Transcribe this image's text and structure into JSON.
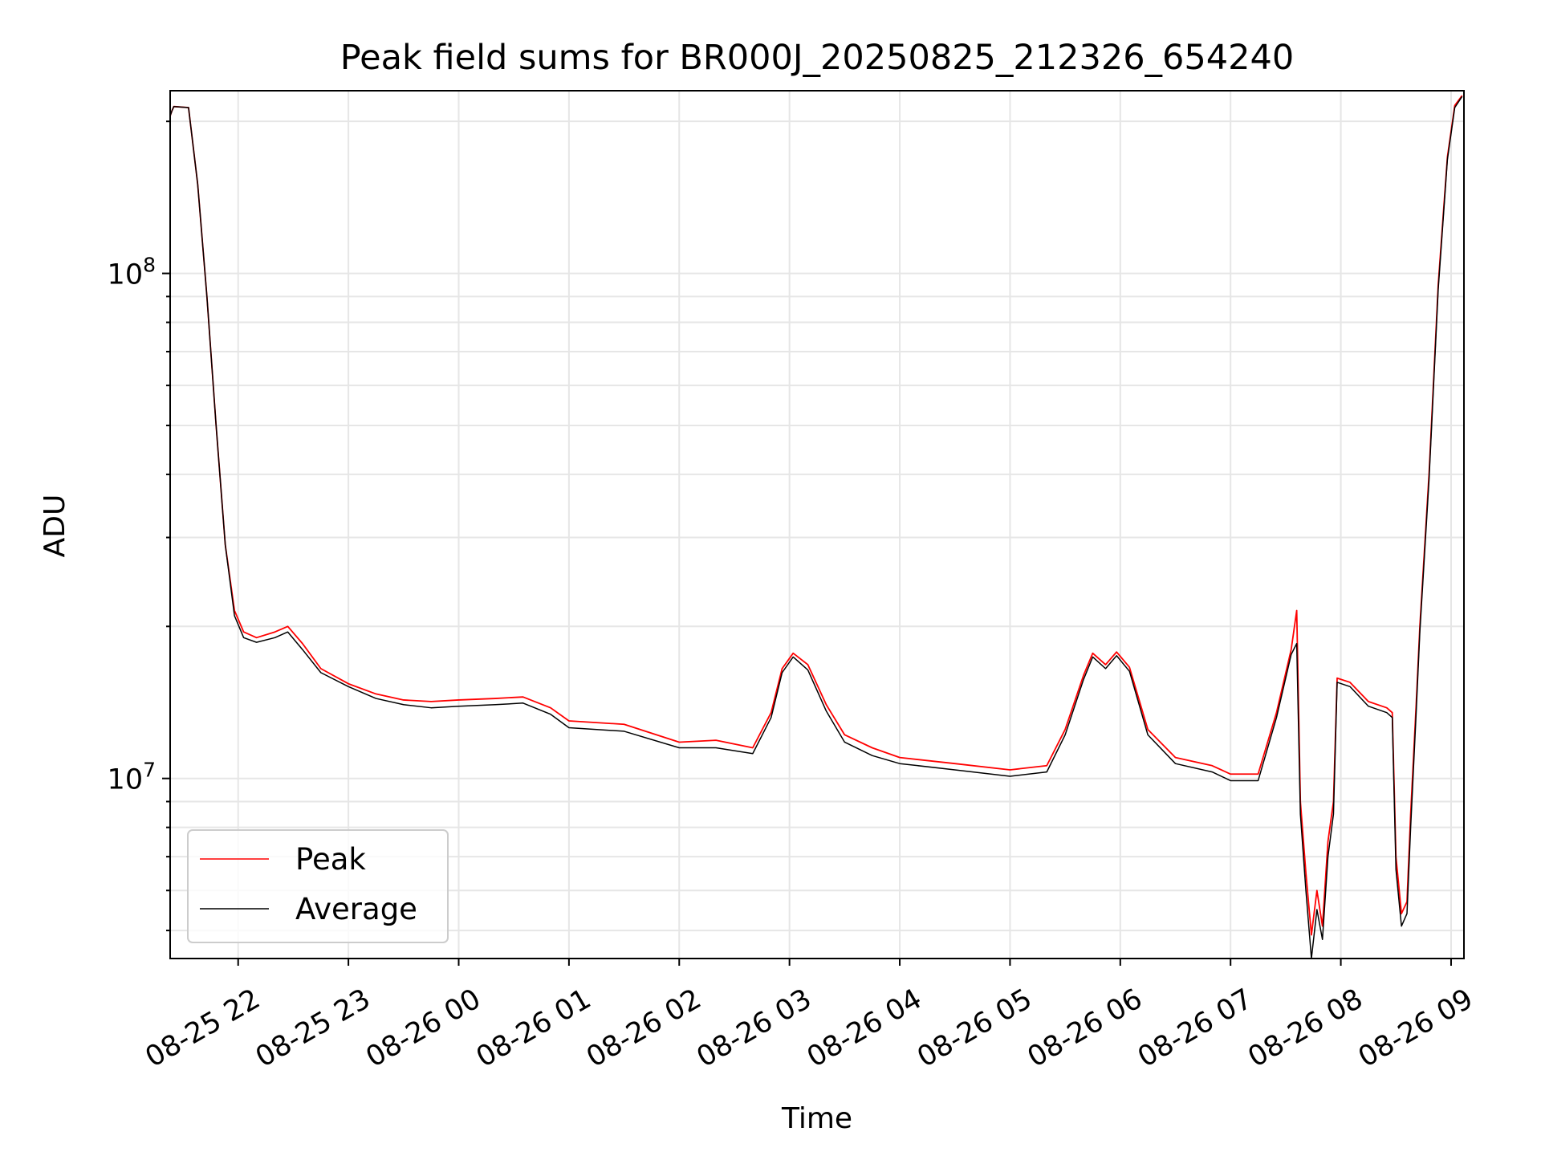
{
  "chart_data": {
    "type": "line",
    "title": "Peak field sums for BR000J_20250825_212326_654240",
    "xlabel": "Time",
    "ylabel": "ADU",
    "yscale": "log",
    "ylim": [
      4400000,
      230000000
    ],
    "xlim": [
      "2025-08-25 21:23",
      "2025-08-26 09:07"
    ],
    "grid": true,
    "legend_position": "lower-left",
    "x_ticks": [
      {
        "t": "2025-08-25 22:00",
        "label": "08-25 22"
      },
      {
        "t": "2025-08-25 23:00",
        "label": "08-25 23"
      },
      {
        "t": "2025-08-26 00:00",
        "label": "08-26 00"
      },
      {
        "t": "2025-08-26 01:00",
        "label": "08-26 01"
      },
      {
        "t": "2025-08-26 02:00",
        "label": "08-26 02"
      },
      {
        "t": "2025-08-26 03:00",
        "label": "08-26 03"
      },
      {
        "t": "2025-08-26 04:00",
        "label": "08-26 04"
      },
      {
        "t": "2025-08-26 05:00",
        "label": "08-26 05"
      },
      {
        "t": "2025-08-26 06:00",
        "label": "08-26 06"
      },
      {
        "t": "2025-08-26 07:00",
        "label": "08-26 07"
      },
      {
        "t": "2025-08-26 08:00",
        "label": "08-26 08"
      },
      {
        "t": "2025-08-26 09:00",
        "label": "08-26 09"
      }
    ],
    "y_ticks": [
      {
        "value": 10000000,
        "base": "10",
        "exp": "7"
      },
      {
        "value": 100000000,
        "base": "10",
        "exp": "8"
      }
    ],
    "series": [
      {
        "name": "Peak",
        "color": "#ff0000",
        "points": [
          [
            "2025-08-25 21:23",
            205000000
          ],
          [
            "2025-08-25 21:24",
            210000000
          ],
          [
            "2025-08-25 21:25",
            214000000
          ],
          [
            "2025-08-25 21:33",
            213000000
          ],
          [
            "2025-08-25 21:38",
            150000000
          ],
          [
            "2025-08-25 21:43",
            90000000
          ],
          [
            "2025-08-25 21:48",
            50000000
          ],
          [
            "2025-08-25 21:53",
            29000000
          ],
          [
            "2025-08-25 21:58",
            21500000
          ],
          [
            "2025-08-25 22:03",
            19500000
          ],
          [
            "2025-08-25 22:10",
            19000000
          ],
          [
            "2025-08-25 22:20",
            19500000
          ],
          [
            "2025-08-25 22:27",
            20000000
          ],
          [
            "2025-08-25 22:35",
            18500000
          ],
          [
            "2025-08-25 22:45",
            16500000
          ],
          [
            "2025-08-25 23:00",
            15400000
          ],
          [
            "2025-08-25 23:15",
            14700000
          ],
          [
            "2025-08-25 23:30",
            14300000
          ],
          [
            "2025-08-25 23:45",
            14200000
          ],
          [
            "2025-08-26 00:00",
            14300000
          ],
          [
            "2025-08-26 00:20",
            14400000
          ],
          [
            "2025-08-26 00:35",
            14500000
          ],
          [
            "2025-08-26 00:50",
            13800000
          ],
          [
            "2025-08-26 01:00",
            13000000
          ],
          [
            "2025-08-26 01:30",
            12800000
          ],
          [
            "2025-08-26 02:00",
            11800000
          ],
          [
            "2025-08-26 02:20",
            11900000
          ],
          [
            "2025-08-26 02:40",
            11500000
          ],
          [
            "2025-08-26 02:50",
            13500000
          ],
          [
            "2025-08-26 02:56",
            16500000
          ],
          [
            "2025-08-26 03:02",
            17700000
          ],
          [
            "2025-08-26 03:10",
            16800000
          ],
          [
            "2025-08-26 03:20",
            14000000
          ],
          [
            "2025-08-26 03:30",
            12200000
          ],
          [
            "2025-08-26 03:45",
            11500000
          ],
          [
            "2025-08-26 04:00",
            11000000
          ],
          [
            "2025-08-26 04:30",
            10700000
          ],
          [
            "2025-08-26 05:00",
            10400000
          ],
          [
            "2025-08-26 05:20",
            10600000
          ],
          [
            "2025-08-26 05:30",
            12500000
          ],
          [
            "2025-08-26 05:40",
            16000000
          ],
          [
            "2025-08-26 05:45",
            17700000
          ],
          [
            "2025-08-26 05:52",
            16800000
          ],
          [
            "2025-08-26 05:58",
            17800000
          ],
          [
            "2025-08-26 06:05",
            16600000
          ],
          [
            "2025-08-26 06:15",
            12500000
          ],
          [
            "2025-08-26 06:30",
            11000000
          ],
          [
            "2025-08-26 06:50",
            10600000
          ],
          [
            "2025-08-26 07:00",
            10200000
          ],
          [
            "2025-08-26 07:15",
            10200000
          ],
          [
            "2025-08-26 07:25",
            13500000
          ],
          [
            "2025-08-26 07:33",
            18000000
          ],
          [
            "2025-08-26 07:36",
            21500000
          ],
          [
            "2025-08-26 07:38",
            9000000
          ],
          [
            "2025-08-26 07:41",
            6500000
          ],
          [
            "2025-08-26 07:44",
            4900000
          ],
          [
            "2025-08-26 07:47",
            6000000
          ],
          [
            "2025-08-26 07:50",
            5100000
          ],
          [
            "2025-08-26 07:53",
            7500000
          ],
          [
            "2025-08-26 07:56",
            9000000
          ],
          [
            "2025-08-26 07:58",
            15800000
          ],
          [
            "2025-08-26 08:05",
            15500000
          ],
          [
            "2025-08-26 08:15",
            14200000
          ],
          [
            "2025-08-26 08:25",
            13800000
          ],
          [
            "2025-08-26 08:28",
            13500000
          ],
          [
            "2025-08-26 08:30",
            7000000
          ],
          [
            "2025-08-26 08:33",
            5400000
          ],
          [
            "2025-08-26 08:36",
            5700000
          ],
          [
            "2025-08-26 08:38",
            8500000
          ],
          [
            "2025-08-26 08:41",
            14000000
          ],
          [
            "2025-08-26 08:43",
            20000000
          ],
          [
            "2025-08-26 08:48",
            40000000
          ],
          [
            "2025-08-26 08:53",
            95000000
          ],
          [
            "2025-08-26 08:58",
            170000000
          ],
          [
            "2025-08-26 09:02",
            215000000
          ],
          [
            "2025-08-26 09:06",
            225000000
          ]
        ]
      },
      {
        "name": "Average",
        "color": "#000000",
        "points": [
          [
            "2025-08-25 21:23",
            205000000
          ],
          [
            "2025-08-25 21:24",
            210000000
          ],
          [
            "2025-08-25 21:25",
            214000000
          ],
          [
            "2025-08-25 21:33",
            213000000
          ],
          [
            "2025-08-25 21:38",
            150000000
          ],
          [
            "2025-08-25 21:43",
            90000000
          ],
          [
            "2025-08-25 21:48",
            50000000
          ],
          [
            "2025-08-25 21:53",
            29000000
          ],
          [
            "2025-08-25 21:58",
            21000000
          ],
          [
            "2025-08-25 22:03",
            19000000
          ],
          [
            "2025-08-25 22:10",
            18600000
          ],
          [
            "2025-08-25 22:20",
            19000000
          ],
          [
            "2025-08-25 22:27",
            19500000
          ],
          [
            "2025-08-25 22:35",
            18000000
          ],
          [
            "2025-08-25 22:45",
            16200000
          ],
          [
            "2025-08-25 23:00",
            15200000
          ],
          [
            "2025-08-25 23:15",
            14400000
          ],
          [
            "2025-08-25 23:30",
            14000000
          ],
          [
            "2025-08-25 23:45",
            13800000
          ],
          [
            "2025-08-26 00:00",
            13900000
          ],
          [
            "2025-08-26 00:20",
            14000000
          ],
          [
            "2025-08-26 00:35",
            14100000
          ],
          [
            "2025-08-26 00:50",
            13400000
          ],
          [
            "2025-08-26 01:00",
            12600000
          ],
          [
            "2025-08-26 01:30",
            12400000
          ],
          [
            "2025-08-26 02:00",
            11500000
          ],
          [
            "2025-08-26 02:20",
            11500000
          ],
          [
            "2025-08-26 02:40",
            11200000
          ],
          [
            "2025-08-26 02:50",
            13200000
          ],
          [
            "2025-08-26 02:56",
            16200000
          ],
          [
            "2025-08-26 03:02",
            17400000
          ],
          [
            "2025-08-26 03:10",
            16400000
          ],
          [
            "2025-08-26 03:20",
            13600000
          ],
          [
            "2025-08-26 03:30",
            11800000
          ],
          [
            "2025-08-26 03:45",
            11100000
          ],
          [
            "2025-08-26 04:00",
            10700000
          ],
          [
            "2025-08-26 04:30",
            10400000
          ],
          [
            "2025-08-26 05:00",
            10100000
          ],
          [
            "2025-08-26 05:20",
            10300000
          ],
          [
            "2025-08-26 05:30",
            12200000
          ],
          [
            "2025-08-26 05:40",
            15700000
          ],
          [
            "2025-08-26 05:45",
            17400000
          ],
          [
            "2025-08-26 05:52",
            16500000
          ],
          [
            "2025-08-26 05:58",
            17500000
          ],
          [
            "2025-08-26 06:05",
            16300000
          ],
          [
            "2025-08-26 06:15",
            12200000
          ],
          [
            "2025-08-26 06:30",
            10700000
          ],
          [
            "2025-08-26 06:50",
            10300000
          ],
          [
            "2025-08-26 07:00",
            9900000
          ],
          [
            "2025-08-26 07:15",
            9900000
          ],
          [
            "2025-08-26 07:25",
            13200000
          ],
          [
            "2025-08-26 07:33",
            17600000
          ],
          [
            "2025-08-26 07:36",
            18500000
          ],
          [
            "2025-08-26 07:38",
            8500000
          ],
          [
            "2025-08-26 07:41",
            6000000
          ],
          [
            "2025-08-26 07:44",
            4400000
          ],
          [
            "2025-08-26 07:47",
            5500000
          ],
          [
            "2025-08-26 07:50",
            4800000
          ],
          [
            "2025-08-26 07:53",
            7000000
          ],
          [
            "2025-08-26 07:56",
            8500000
          ],
          [
            "2025-08-26 07:58",
            15500000
          ],
          [
            "2025-08-26 08:05",
            15200000
          ],
          [
            "2025-08-26 08:15",
            13900000
          ],
          [
            "2025-08-26 08:25",
            13500000
          ],
          [
            "2025-08-26 08:28",
            13200000
          ],
          [
            "2025-08-26 08:30",
            6600000
          ],
          [
            "2025-08-26 08:33",
            5100000
          ],
          [
            "2025-08-26 08:36",
            5400000
          ],
          [
            "2025-08-26 08:38",
            8000000
          ],
          [
            "2025-08-26 08:41",
            13500000
          ],
          [
            "2025-08-26 08:43",
            19500000
          ],
          [
            "2025-08-26 08:48",
            39000000
          ],
          [
            "2025-08-26 08:53",
            93000000
          ],
          [
            "2025-08-26 08:58",
            168000000
          ],
          [
            "2025-08-26 09:02",
            213000000
          ],
          [
            "2025-08-26 09:06",
            224000000
          ]
        ]
      }
    ]
  }
}
